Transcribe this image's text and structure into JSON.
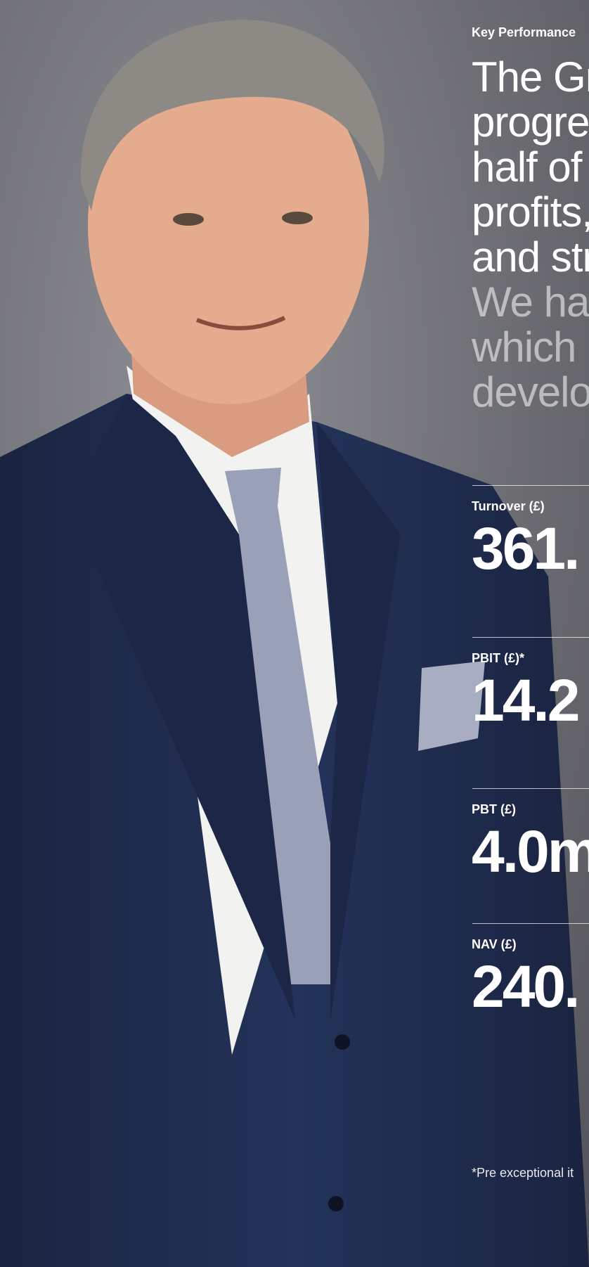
{
  "header": {
    "kicker": "Key Performance"
  },
  "statement": {
    "lines": [
      "The Gr",
      "progre",
      "half of",
      "profits,",
      "and str"
    ],
    "dim_lines": [
      "We ha",
      "which",
      "develo"
    ]
  },
  "kpis": [
    {
      "label": "Turnover (£)",
      "value": "361."
    },
    {
      "label": "PBIT (£)*",
      "value": "14.2"
    },
    {
      "label": "PBT (£)",
      "value": "4.0m"
    },
    {
      "label": "NAV (£)",
      "value": "240."
    }
  ],
  "footnote": "*Pre exceptional it"
}
